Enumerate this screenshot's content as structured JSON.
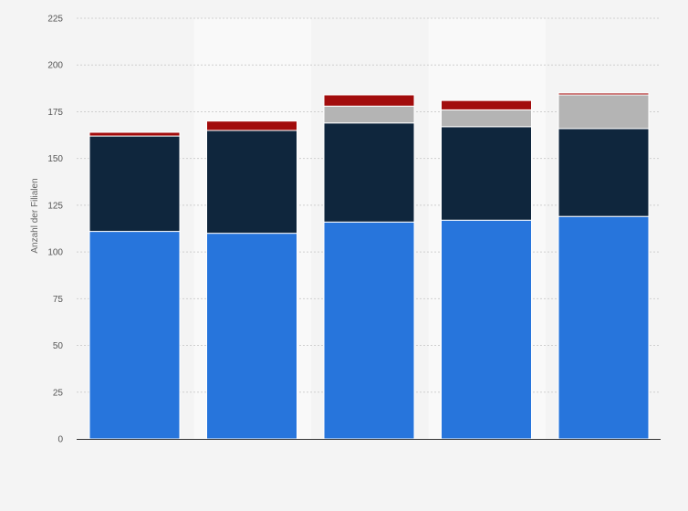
{
  "chart_data": {
    "type": "bar",
    "stacked": true,
    "categories": [
      "",
      "",
      "",
      "",
      ""
    ],
    "series": [
      {
        "color": "#2775dc",
        "values": [
          111,
          110,
          116,
          117,
          119
        ]
      },
      {
        "color": "#0f263d",
        "values": [
          51,
          55,
          53,
          50,
          47
        ]
      },
      {
        "color": "#b4b4b4",
        "values": [
          0,
          0,
          9,
          9,
          18
        ]
      },
      {
        "color": "#a20c0c",
        "values": [
          2,
          5,
          6,
          5,
          1
        ]
      }
    ],
    "title": "",
    "xlabel": "",
    "ylabel": "Anzahl der Filialen",
    "ylim": [
      0,
      225
    ],
    "yticks": [
      0,
      25,
      50,
      75,
      100,
      125,
      150,
      175,
      200,
      225
    ],
    "grid": true,
    "legend": "none"
  }
}
